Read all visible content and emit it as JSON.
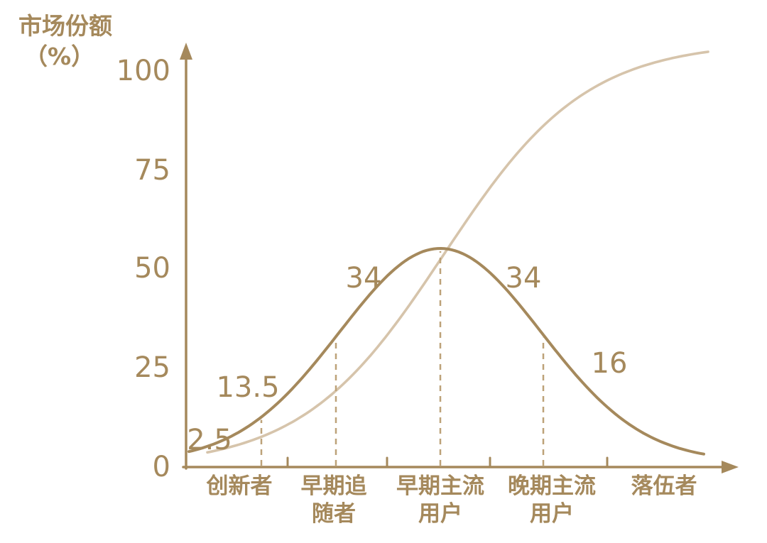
{
  "chart": {
    "ylabel_line1": "市场份额",
    "ylabel_line2": "（%）",
    "colors": {
      "text": "#a5895c",
      "axis": "#a5895c",
      "bell": "#a5895c",
      "scurve": "#d6c4ab",
      "dashed": "#bda279"
    }
  },
  "chart_data": {
    "type": "line",
    "title": "",
    "xlabel": "",
    "ylabel": "市场份额（%）",
    "yticks": [
      0,
      25,
      50,
      75,
      100
    ],
    "ylim": [
      0,
      110
    ],
    "grid": false,
    "legend": "none",
    "categories": [
      {
        "line1": "创新者",
        "line2": ""
      },
      {
        "line1": "早期追",
        "line2": "随者"
      },
      {
        "line1": "早期主流",
        "line2": "用户"
      },
      {
        "line1": "晚期主流",
        "line2": "用户"
      },
      {
        "line1": "落伍者",
        "line2": ""
      }
    ],
    "segment_shares": [
      2.5,
      13.5,
      34,
      34,
      16
    ],
    "series": [
      {
        "name": "adoption-bell-curve",
        "shape": "gaussian",
        "peak_percent": 55,
        "baseline_percent": 1.5,
        "segment_values_percent": [
          2.5,
          13.5,
          34,
          34,
          16
        ]
      },
      {
        "name": "cumulative-s-curve",
        "shape": "logistic",
        "max_percent": 107,
        "start_percent": 2
      }
    ]
  }
}
